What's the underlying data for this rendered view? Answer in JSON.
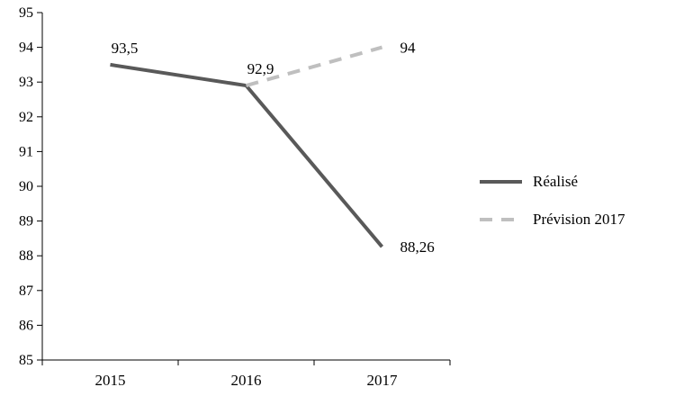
{
  "chart_data": {
    "type": "line",
    "title": "",
    "xlabel": "",
    "ylabel": "",
    "categories": [
      "2015",
      "2016",
      "2017"
    ],
    "series": [
      {
        "name": "Réalisé",
        "style": "solid",
        "color": "#595959",
        "x": [
          "2015",
          "2016",
          "2017"
        ],
        "values": [
          93.5,
          92.9,
          88.26
        ],
        "labels": [
          {
            "text": "93,5",
            "pos": "above"
          },
          {
            "text": "92,9",
            "pos": "above"
          },
          {
            "text": "88,26",
            "pos": "right"
          }
        ]
      },
      {
        "name": "Prévision 2017",
        "style": "dashed",
        "color": "#bfbfbf",
        "x": [
          "2016",
          "2017"
        ],
        "values": [
          92.9,
          94
        ],
        "labels": [
          null,
          {
            "text": "94",
            "pos": "right"
          }
        ]
      }
    ],
    "ylim": [
      85,
      95
    ],
    "ytick_step": 1,
    "grid": false,
    "legend_position": "right",
    "axis_color": "#000000",
    "text_color": "#000000"
  },
  "legend": {
    "items": [
      {
        "label": "Réalisé"
      },
      {
        "label": "Prévision 2017"
      }
    ]
  }
}
